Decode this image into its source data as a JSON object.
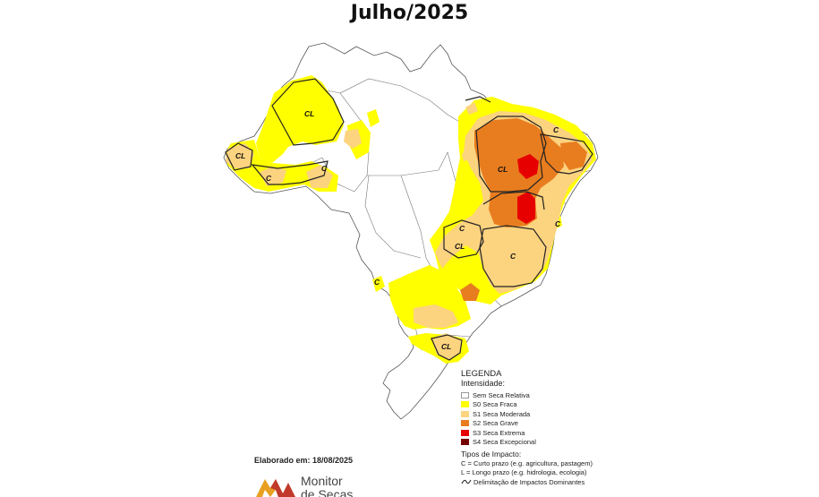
{
  "title": "Julho/2025",
  "credit": "Elaborado em: 18/08/2025",
  "logo": {
    "line1": "Monitor",
    "line2": "de Secas"
  },
  "colors": {
    "none": "#ffffff",
    "s0": "#ffff00",
    "s1": "#fcd37f",
    "s2": "#e87d1f",
    "s3": "#e60000",
    "s4": "#730000",
    "border": "#555555"
  },
  "map_labels": [
    {
      "id": "cl-acre-north",
      "text": "CL"
    },
    {
      "id": "cl-acre-west",
      "text": "CL"
    },
    {
      "id": "c-acre-south",
      "text": "C"
    },
    {
      "id": "c-rondonia",
      "text": "C"
    },
    {
      "id": "cl-northeast",
      "text": "CL"
    },
    {
      "id": "c-ceara",
      "text": "C"
    },
    {
      "id": "cl-goias",
      "text": "CL"
    },
    {
      "id": "c-minas",
      "text": "C"
    },
    {
      "id": "c-mato-grosso-sul",
      "text": "C"
    },
    {
      "id": "cl-rio-grande-sul",
      "text": "CL"
    },
    {
      "id": "c-bahia-coast",
      "text": "C"
    },
    {
      "id": "c-pernambuco",
      "text": "C"
    }
  ],
  "legend": {
    "heading": "LEGENDA",
    "intensity_heading": "Intensidade:",
    "items": [
      {
        "label": "Sem Seca Relativa",
        "color": "#ffffff"
      },
      {
        "label": "S0 Seca Fraca",
        "color": "#ffff00"
      },
      {
        "label": "S1 Seca Moderada",
        "color": "#fcd37f"
      },
      {
        "label": "S2 Seca Grave",
        "color": "#e87d1f"
      },
      {
        "label": "S3 Seca Extrema",
        "color": "#e60000"
      },
      {
        "label": "S4 Seca Excepcional",
        "color": "#730000"
      }
    ],
    "impact_heading": "Tipos de Impacto:",
    "impact_short": "C = Curto prazo (e.g. agricultura, pastagem)",
    "impact_long": "L = Longo prazo (e.g. hidrologia, ecologia)",
    "delimitation": "Delimitação de Impactos Dominantes"
  }
}
